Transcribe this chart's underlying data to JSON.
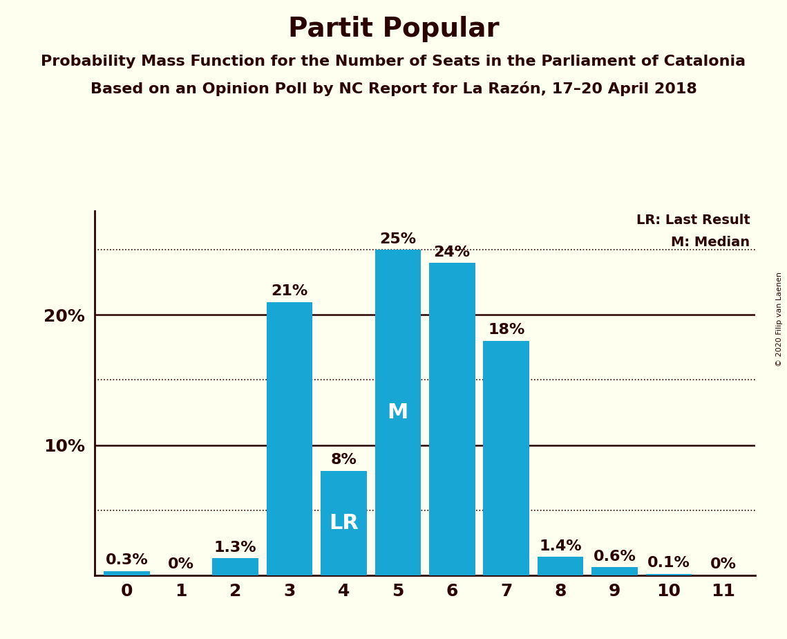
{
  "title": "Partit Popular",
  "subtitle1": "Probability Mass Function for the Number of Seats in the Parliament of Catalonia",
  "subtitle2": "Based on an Opinion Poll by NC Report for La Razón, 17–20 April 2018",
  "copyright": "© 2020 Filip van Laenen",
  "categories": [
    0,
    1,
    2,
    3,
    4,
    5,
    6,
    7,
    8,
    9,
    10,
    11
  ],
  "values": [
    0.3,
    0.0,
    1.3,
    21.0,
    8.0,
    25.0,
    24.0,
    18.0,
    1.4,
    0.6,
    0.1,
    0.0
  ],
  "labels": [
    "0.3%",
    "0%",
    "1.3%",
    "21%",
    "8%",
    "25%",
    "24%",
    "18%",
    "1.4%",
    "0.6%",
    "0.1%",
    "0%"
  ],
  "bar_color": "#18A7D4",
  "background_color": "#FFFFF0",
  "text_color": "#2B0000",
  "lr_bar": 4,
  "median_bar": 5,
  "lr_label": "LR",
  "median_label": "M",
  "legend_lr": "LR: Last Result",
  "legend_m": "M: Median",
  "yticks": [
    10,
    20
  ],
  "dotted_lines": [
    5,
    15,
    25
  ],
  "solid_lines": [
    10,
    20
  ],
  "ylim": [
    0,
    28
  ],
  "title_fontsize": 28,
  "subtitle_fontsize": 16,
  "tick_fontsize": 18,
  "bar_label_fontsize": 16,
  "inner_label_fontsize": 22,
  "legend_fontsize": 14
}
